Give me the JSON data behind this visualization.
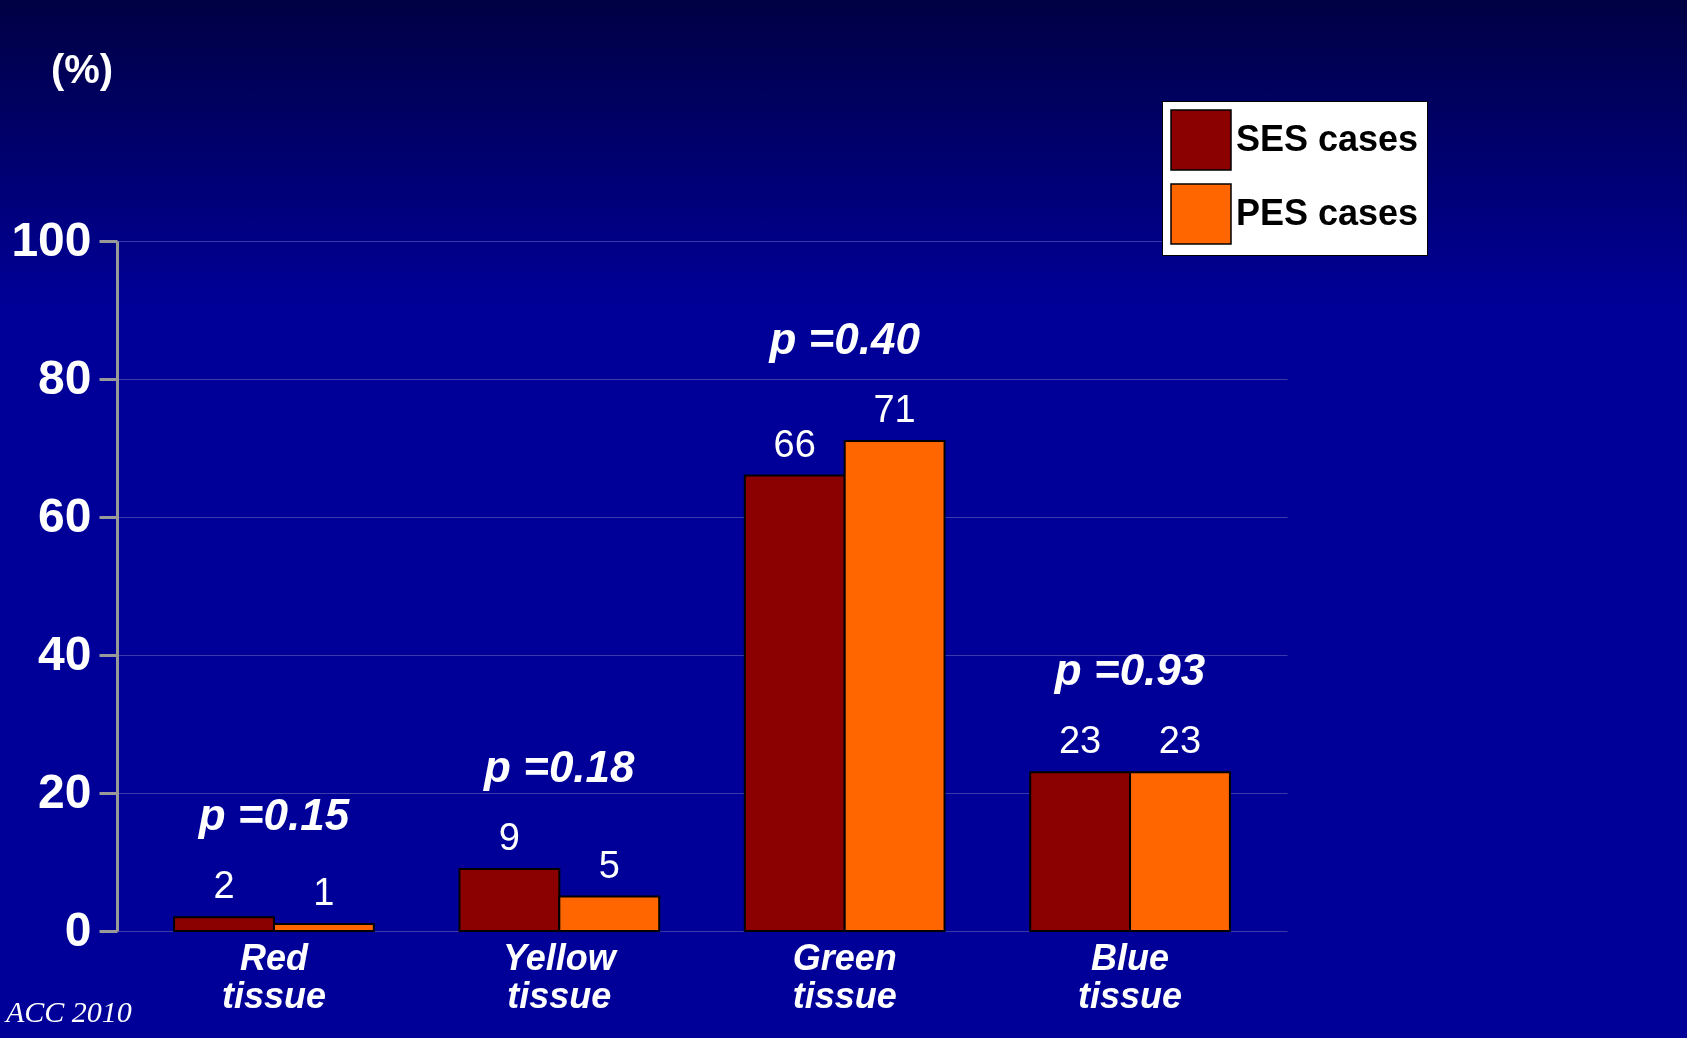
{
  "chart_data": {
    "type": "bar",
    "ylabel": "(%)",
    "categories": [
      "Red tissue",
      "Yellow tissue",
      "Green tissue",
      "Blue tissue"
    ],
    "series": [
      {
        "name": "SES cases",
        "color": "#8b0000",
        "values": [
          2,
          9,
          66,
          23
        ]
      },
      {
        "name": "PES cases",
        "color": "#ff6600",
        "values": [
          1,
          5,
          71,
          23
        ]
      }
    ],
    "ylim": [
      0,
      100
    ],
    "yticks": [
      0,
      20,
      40,
      60,
      80,
      100
    ],
    "grid": "y",
    "legend": "top right",
    "data_labels": true,
    "annotations": [
      "p =0.15",
      "p =0.18",
      "p =0.40",
      "p =0.93",
      "ACC 2010"
    ]
  }
}
